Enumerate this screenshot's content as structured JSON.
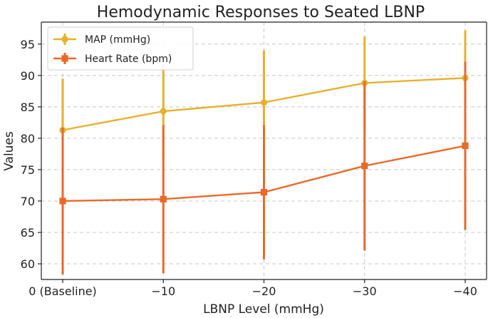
{
  "chart_data": {
    "type": "line",
    "title": "Hemodynamic Responses to Seated LBNP",
    "xlabel": "LBNP Level (mmHg)",
    "ylabel": "Values",
    "categories": [
      "0 (Baseline)",
      "−10",
      "−20",
      "−30",
      "−40"
    ],
    "ylim": [
      57.5,
      98.5
    ],
    "yticks": [
      60,
      65,
      70,
      75,
      80,
      85,
      90,
      95
    ],
    "grid": true,
    "legend_position": "top-left",
    "series": [
      {
        "name": "MAP (mmHg)",
        "color": "#e5b12e",
        "marker": "circle",
        "values": [
          81.3,
          84.3,
          85.7,
          88.8,
          89.6
        ],
        "error": [
          8.2,
          7.5,
          8.3,
          7.4,
          7.6
        ]
      },
      {
        "name": "Heart Rate (bpm)",
        "color": "#e8692a",
        "marker": "square",
        "values": [
          70.0,
          70.3,
          71.4,
          75.6,
          78.8
        ],
        "error": [
          11.7,
          11.8,
          10.7,
          13.5,
          13.4
        ]
      }
    ]
  }
}
